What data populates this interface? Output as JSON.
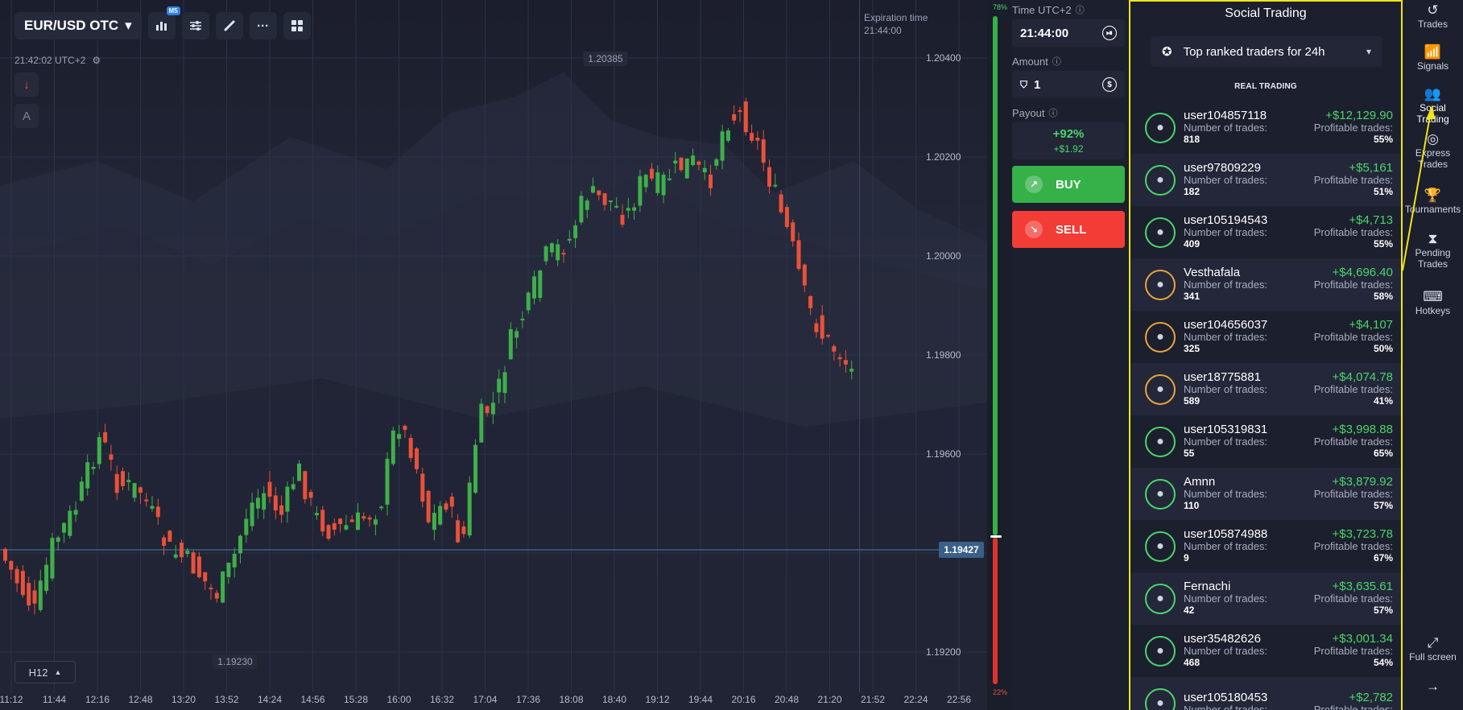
{
  "asset": {
    "label": "EUR/USD OTC",
    "caret": "▾"
  },
  "toolbar": {
    "badge": "M5",
    "icons": [
      "chart-type-icon",
      "settings-sliders-icon",
      "draw-brush-icon",
      "more-icon",
      "layout-grid-icon"
    ]
  },
  "clock": "21:42:02 UTC+2",
  "side_tools": {
    "down_arrow": "↓",
    "text_tool": "A"
  },
  "timeframe": "H12",
  "chart": {
    "high_label": "1.20385",
    "low_label": "1.19230",
    "current_price": "1.19427",
    "y_ticks": [
      "1.20400",
      "1.20200",
      "1.20000",
      "1.19800",
      "1.19600",
      "1.19200"
    ],
    "x_ticks": [
      "11:12",
      "11:44",
      "12:16",
      "12:48",
      "13:20",
      "13:52",
      "14:24",
      "14:56",
      "15:28",
      "16:00",
      "16:32",
      "17:04",
      "17:36",
      "18:08",
      "18:40",
      "19:12",
      "19:44",
      "20:16",
      "20:48",
      "21:20",
      "21:52",
      "22:24",
      "22:56"
    ],
    "expiration_label": "Expiration time",
    "expiration_time": "21:44:00",
    "up_percent": "78%",
    "down_percent": "22%",
    "colors": {
      "up": "#3fae4b",
      "down": "#e8513a",
      "price_line": "#3a5f88"
    }
  },
  "trade_panel": {
    "time_label": "Time UTC+2",
    "time_value": "21:44:00",
    "amount_label": "Amount",
    "amount_value": "1",
    "payout_label": "Payout",
    "payout_percent": "+92%",
    "payout_amount": "+$1.92",
    "buy_label": "BUY",
    "sell_label": "SELL",
    "colors": {
      "buy": "#35b148",
      "sell": "#f23c35"
    }
  },
  "social": {
    "title": "Social Trading",
    "filter": "Top ranked traders for 24h",
    "section": "REAL TRADING",
    "trades_label": "Number of trades:",
    "profitable_label": "Profitable trades:",
    "traders": [
      {
        "name": "user104857118",
        "trades": "818",
        "profit": "+$12,129.90",
        "pct": "55%",
        "avatar": "person-suit-avatar-icon"
      },
      {
        "name": "user97809229",
        "trades": "182",
        "profit": "+$5,161",
        "pct": "51%",
        "avatar": "person-photo-avatar-icon"
      },
      {
        "name": "user105194543",
        "trades": "409",
        "profit": "+$4,713",
        "pct": "55%",
        "avatar": "korea-flag-avatar-icon"
      },
      {
        "name": "Vesthafala",
        "trades": "341",
        "profit": "+$4,696.40",
        "pct": "58%",
        "avatar": "person-photo-avatar-icon"
      },
      {
        "name": "user104656037",
        "trades": "325",
        "profit": "+$4,107",
        "pct": "50%",
        "avatar": "default-user-avatar-icon"
      },
      {
        "name": "user18775881",
        "trades": "589",
        "profit": "+$4,074.78",
        "pct": "41%",
        "avatar": "default-user-avatar-icon"
      },
      {
        "name": "user105319831",
        "trades": "55",
        "profit": "+$3,998.88",
        "pct": "65%",
        "avatar": "person-photo-avatar-icon"
      },
      {
        "name": "Amnn",
        "trades": "110",
        "profit": "+$3,879.92",
        "pct": "57%",
        "avatar": "malaysia-flag-avatar-icon"
      },
      {
        "name": "user105874988",
        "trades": "9",
        "profit": "+$3,723.78",
        "pct": "67%",
        "avatar": "nigeria-flag-avatar-icon"
      },
      {
        "name": "Fernachi",
        "trades": "42",
        "profit": "+$3,635.61",
        "pct": "57%",
        "avatar": "person-photo-avatar-icon"
      },
      {
        "name": "user35482626",
        "trades": "468",
        "profit": "+$3,001.34",
        "pct": "54%",
        "avatar": "moldova-flag-avatar-icon"
      },
      {
        "name": "user105180453",
        "trades": "",
        "profit": "+$2,782",
        "pct": "",
        "avatar": "person-photo-avatar-icon"
      }
    ]
  },
  "right_nav": [
    {
      "label": "Trades",
      "icon": "history-icon"
    },
    {
      "label": "Signals",
      "icon": "signal-tower-icon"
    },
    {
      "label": "Social Trading",
      "icon": "people-icon"
    },
    {
      "label": "Express Trades",
      "icon": "target-icon"
    },
    {
      "label": "Tournaments",
      "icon": "trophy-icon"
    },
    {
      "label": "Pending Trades",
      "icon": "hourglass-icon"
    },
    {
      "label": "Hotkeys",
      "icon": "keyboard-icon"
    },
    {
      "label": "Full screen",
      "icon": "fullscreen-icon"
    },
    {
      "label": "",
      "icon": "arrow-right-icon"
    }
  ]
}
